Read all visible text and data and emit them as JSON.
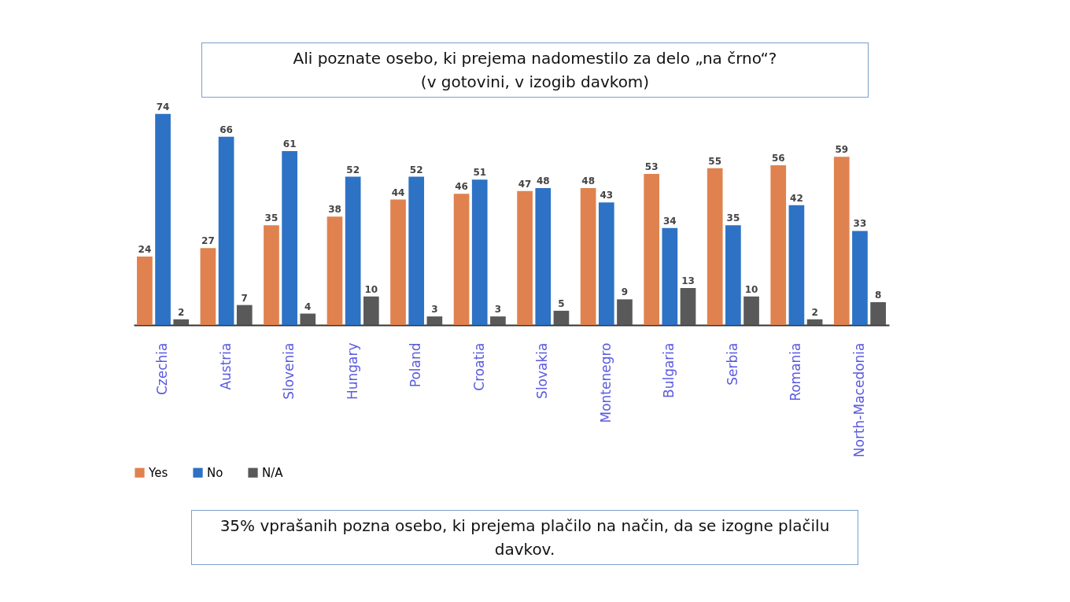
{
  "chart_data": {
    "type": "bar",
    "title": "Ali poznate osebo, ki prejema nadomestilo za delo „na črno“?",
    "subtitle": "(v gotovini, v izogib davkom)",
    "categories": [
      "Czechia",
      "Austria",
      "Slovenia",
      "Hungary",
      "Poland",
      "Croatia",
      "Slovakia",
      "Montenegro",
      "Bulgaria",
      "Serbia",
      "Romania",
      "North-Macedonia"
    ],
    "series": [
      {
        "name": "Yes",
        "color": "#e0824f",
        "values": [
          24,
          27,
          35,
          38,
          44,
          46,
          47,
          48,
          53,
          55,
          56,
          59
        ]
      },
      {
        "name": "No",
        "color": "#2d72c4",
        "values": [
          74,
          66,
          61,
          52,
          52,
          51,
          48,
          43,
          34,
          35,
          42,
          33
        ]
      },
      {
        "name": "N/A",
        "color": "#595959",
        "values": [
          2,
          7,
          4,
          10,
          3,
          3,
          5,
          9,
          13,
          10,
          2,
          8
        ]
      }
    ],
    "data_labels": true,
    "grid": false,
    "legend": "bottom",
    "annotations": [
      "35% vprašanih pozna osebo, ki prejema plačilo na način, da se izogne plačilu davkov."
    ]
  }
}
